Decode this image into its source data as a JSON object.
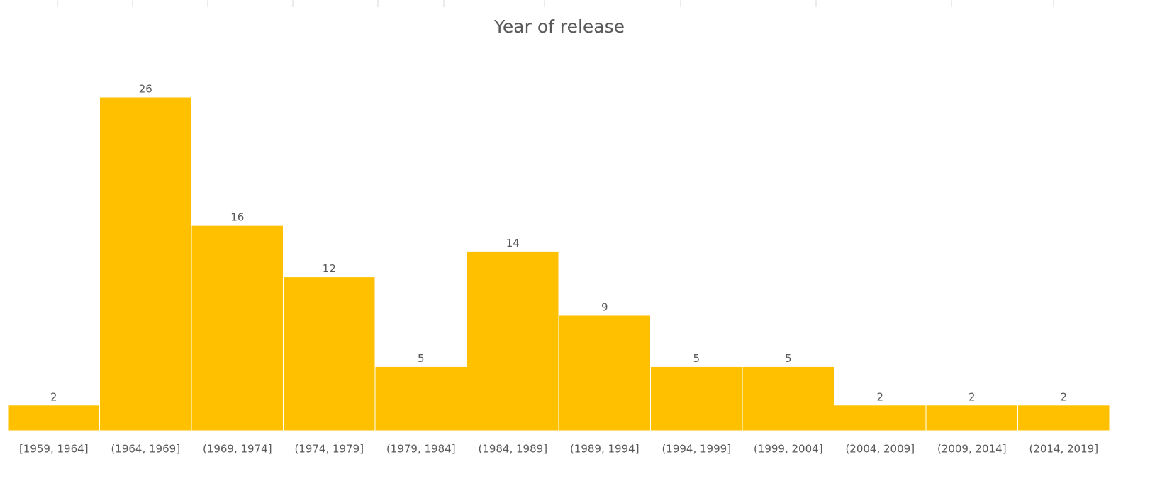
{
  "chart_data": {
    "type": "bar",
    "title": "Year of release",
    "categories": [
      "[1959, 1964]",
      "(1964, 1969]",
      "(1969, 1974]",
      "(1974, 1979]",
      "(1979, 1984]",
      "(1984, 1989]",
      "(1989, 1994]",
      "(1994, 1999]",
      "(1999, 2004]",
      "(2004, 2009]",
      "(2009, 2014]",
      "(2014, 2019]"
    ],
    "values": [
      2,
      26,
      16,
      12,
      5,
      14,
      9,
      5,
      5,
      2,
      2,
      2
    ],
    "color": "#ffc000"
  }
}
